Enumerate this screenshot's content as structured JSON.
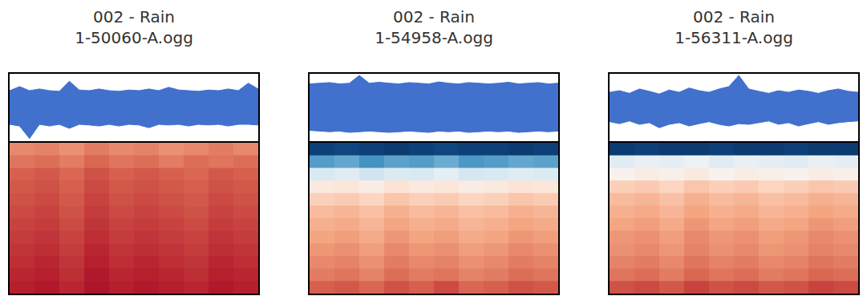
{
  "chart_data": [
    {
      "title": "002 - Rain",
      "subtitle": "1-50060-A.ogg",
      "waveform": {
        "type": "area",
        "color": "#4170cd",
        "xlim": [
          0,
          5
        ],
        "ylim": [
          -1,
          1
        ],
        "tick_labels": false,
        "grid": false,
        "x": [
          0,
          0.2,
          0.4,
          0.6,
          0.8,
          1,
          1.2,
          1.4,
          1.6,
          1.8,
          2,
          2.2,
          2.4,
          2.6,
          2.8,
          3,
          3.2,
          3.4,
          3.6,
          3.8,
          4,
          4.2,
          4.4,
          4.6,
          4.8,
          5
        ],
        "upper": [
          0.5,
          0.62,
          0.5,
          0.55,
          0.5,
          0.48,
          0.78,
          0.52,
          0.5,
          0.55,
          0.5,
          0.48,
          0.52,
          0.5,
          0.55,
          0.5,
          0.6,
          0.52,
          0.5,
          0.48,
          0.52,
          0.5,
          0.55,
          0.5,
          0.72,
          0.55
        ],
        "lower": [
          -0.5,
          -0.55,
          -0.92,
          -0.5,
          -0.55,
          -0.5,
          -0.62,
          -0.5,
          -0.52,
          -0.55,
          -0.5,
          -0.55,
          -0.5,
          -0.52,
          -0.6,
          -0.5,
          -0.52,
          -0.5,
          -0.55,
          -0.5,
          -0.52,
          -0.5,
          -0.55,
          -0.5,
          -0.5,
          -0.52
        ]
      },
      "spectrogram": {
        "type": "heatmap",
        "color_range": [
          0,
          1
        ],
        "tick_labels": false,
        "grid": false,
        "cells": [
          [
            0.74,
            0.75,
            0.73,
            0.76,
            0.74,
            0.75,
            0.73,
            0.74,
            0.76,
            0.74
          ],
          [
            0.77,
            0.78,
            0.76,
            0.79,
            0.77,
            0.78,
            0.76,
            0.78,
            0.77,
            0.78
          ],
          [
            0.8,
            0.81,
            0.79,
            0.82,
            0.8,
            0.81,
            0.8,
            0.79,
            0.81,
            0.8
          ],
          [
            0.81,
            0.82,
            0.8,
            0.83,
            0.81,
            0.82,
            0.81,
            0.8,
            0.82,
            0.81
          ],
          [
            0.82,
            0.83,
            0.81,
            0.84,
            0.82,
            0.83,
            0.82,
            0.81,
            0.83,
            0.82
          ],
          [
            0.83,
            0.84,
            0.82,
            0.85,
            0.83,
            0.84,
            0.83,
            0.82,
            0.84,
            0.83
          ],
          [
            0.84,
            0.85,
            0.83,
            0.86,
            0.84,
            0.85,
            0.84,
            0.83,
            0.85,
            0.84
          ],
          [
            0.85,
            0.86,
            0.84,
            0.87,
            0.85,
            0.86,
            0.85,
            0.84,
            0.86,
            0.85
          ],
          [
            0.86,
            0.87,
            0.85,
            0.88,
            0.86,
            0.87,
            0.86,
            0.85,
            0.87,
            0.86
          ],
          [
            0.87,
            0.88,
            0.86,
            0.89,
            0.87,
            0.88,
            0.87,
            0.86,
            0.88,
            0.87
          ],
          [
            0.88,
            0.89,
            0.87,
            0.9,
            0.88,
            0.89,
            0.88,
            0.87,
            0.89,
            0.88
          ],
          [
            0.89,
            0.9,
            0.88,
            0.91,
            0.89,
            0.9,
            0.89,
            0.88,
            0.9,
            0.89
          ]
        ]
      }
    },
    {
      "title": "002 - Rain",
      "subtitle": "1-54958-A.ogg",
      "waveform": {
        "type": "area",
        "color": "#4170cd",
        "xlim": [
          0,
          5
        ],
        "ylim": [
          -1,
          1
        ],
        "tick_labels": false,
        "grid": false,
        "x": [
          0,
          0.2,
          0.4,
          0.6,
          0.8,
          1,
          1.2,
          1.4,
          1.6,
          1.8,
          2,
          2.2,
          2.4,
          2.6,
          2.8,
          3,
          3.2,
          3.4,
          3.6,
          3.8,
          4,
          4.2,
          4.4,
          4.6,
          4.8,
          5
        ],
        "upper": [
          0.7,
          0.72,
          0.74,
          0.7,
          0.72,
          0.95,
          0.72,
          0.75,
          0.72,
          0.7,
          0.74,
          0.72,
          0.7,
          0.76,
          0.72,
          0.7,
          0.74,
          0.72,
          0.7,
          0.72,
          0.75,
          0.7,
          0.72,
          0.74,
          0.7,
          0.72
        ],
        "lower": [
          -0.68,
          -0.7,
          -0.72,
          -0.7,
          -0.74,
          -0.72,
          -0.7,
          -0.72,
          -0.74,
          -0.72,
          -0.7,
          -0.72,
          -0.74,
          -0.7,
          -0.72,
          -0.7,
          -0.74,
          -0.72,
          -0.7,
          -0.72,
          -0.7,
          -0.74,
          -0.72,
          -0.7,
          -0.72,
          -0.7
        ]
      },
      "spectrogram": {
        "type": "heatmap",
        "color_range": [
          0,
          1
        ],
        "tick_labels": false,
        "grid": false,
        "cells": [
          [
            0.03,
            0.04,
            0.03,
            0.02,
            0.03,
            0.04,
            0.03,
            0.03,
            0.02,
            0.03
          ],
          [
            0.22,
            0.24,
            0.2,
            0.23,
            0.22,
            0.25,
            0.21,
            0.22,
            0.24,
            0.23
          ],
          [
            0.42,
            0.44,
            0.4,
            0.43,
            0.42,
            0.45,
            0.41,
            0.42,
            0.44,
            0.43
          ],
          [
            0.55,
            0.56,
            0.54,
            0.57,
            0.55,
            0.56,
            0.54,
            0.55,
            0.57,
            0.56
          ],
          [
            0.62,
            0.63,
            0.61,
            0.64,
            0.62,
            0.63,
            0.61,
            0.62,
            0.64,
            0.63
          ],
          [
            0.66,
            0.67,
            0.65,
            0.68,
            0.66,
            0.67,
            0.65,
            0.66,
            0.68,
            0.67
          ],
          [
            0.68,
            0.69,
            0.67,
            0.7,
            0.68,
            0.69,
            0.67,
            0.68,
            0.7,
            0.69
          ],
          [
            0.7,
            0.71,
            0.69,
            0.72,
            0.7,
            0.71,
            0.69,
            0.7,
            0.72,
            0.71
          ],
          [
            0.72,
            0.73,
            0.71,
            0.74,
            0.72,
            0.73,
            0.71,
            0.72,
            0.74,
            0.73
          ],
          [
            0.74,
            0.75,
            0.73,
            0.76,
            0.74,
            0.75,
            0.73,
            0.74,
            0.76,
            0.75
          ],
          [
            0.76,
            0.77,
            0.75,
            0.78,
            0.76,
            0.77,
            0.75,
            0.76,
            0.78,
            0.77
          ],
          [
            0.8,
            0.81,
            0.79,
            0.82,
            0.8,
            0.83,
            0.79,
            0.8,
            0.82,
            0.81
          ]
        ]
      }
    },
    {
      "title": "002 - Rain",
      "subtitle": "1-56311-A.ogg",
      "waveform": {
        "type": "area",
        "color": "#4170cd",
        "xlim": [
          0,
          5
        ],
        "ylim": [
          -1,
          1
        ],
        "tick_labels": false,
        "grid": false,
        "x": [
          0,
          0.2,
          0.4,
          0.6,
          0.8,
          1,
          1.2,
          1.4,
          1.6,
          1.8,
          2,
          2.2,
          2.4,
          2.6,
          2.8,
          3,
          3.2,
          3.4,
          3.6,
          3.8,
          4,
          4.2,
          4.4,
          4.6,
          4.8,
          5
        ],
        "upper": [
          0.45,
          0.5,
          0.42,
          0.55,
          0.48,
          0.4,
          0.52,
          0.45,
          0.58,
          0.5,
          0.45,
          0.55,
          0.62,
          0.95,
          0.55,
          0.48,
          0.42,
          0.5,
          0.45,
          0.52,
          0.48,
          0.42,
          0.5,
          0.55,
          0.48,
          0.45
        ],
        "lower": [
          -0.42,
          -0.48,
          -0.4,
          -0.5,
          -0.45,
          -0.6,
          -0.5,
          -0.45,
          -0.55,
          -0.48,
          -0.42,
          -0.5,
          -0.55,
          -0.48,
          -0.5,
          -0.45,
          -0.4,
          -0.5,
          -0.45,
          -0.55,
          -0.48,
          -0.42,
          -0.5,
          -0.45,
          -0.42,
          -0.4
        ]
      },
      "spectrogram": {
        "type": "heatmap",
        "color_range": [
          0,
          1
        ],
        "tick_labels": false,
        "grid": false,
        "cells": [
          [
            0.02,
            0.03,
            0.02,
            0.02,
            0.03,
            0.02,
            0.02,
            0.03,
            0.02,
            0.02
          ],
          [
            0.44,
            0.46,
            0.45,
            0.47,
            0.44,
            0.46,
            0.45,
            0.44,
            0.46,
            0.45
          ],
          [
            0.52,
            0.54,
            0.53,
            0.55,
            0.52,
            0.54,
            0.53,
            0.52,
            0.54,
            0.53
          ],
          [
            0.62,
            0.63,
            0.61,
            0.64,
            0.62,
            0.63,
            0.61,
            0.62,
            0.64,
            0.63
          ],
          [
            0.66,
            0.67,
            0.65,
            0.68,
            0.66,
            0.67,
            0.65,
            0.66,
            0.68,
            0.67
          ],
          [
            0.68,
            0.69,
            0.67,
            0.7,
            0.68,
            0.69,
            0.67,
            0.68,
            0.7,
            0.69
          ],
          [
            0.7,
            0.71,
            0.69,
            0.72,
            0.7,
            0.71,
            0.69,
            0.7,
            0.72,
            0.71
          ],
          [
            0.72,
            0.73,
            0.71,
            0.74,
            0.72,
            0.73,
            0.71,
            0.72,
            0.74,
            0.73
          ],
          [
            0.73,
            0.74,
            0.72,
            0.75,
            0.73,
            0.74,
            0.72,
            0.73,
            0.75,
            0.74
          ],
          [
            0.75,
            0.76,
            0.74,
            0.77,
            0.75,
            0.76,
            0.74,
            0.75,
            0.77,
            0.76
          ],
          [
            0.77,
            0.78,
            0.76,
            0.79,
            0.77,
            0.78,
            0.76,
            0.77,
            0.79,
            0.78
          ],
          [
            0.82,
            0.83,
            0.81,
            0.84,
            0.82,
            0.83,
            0.81,
            0.82,
            0.84,
            0.83
          ]
        ]
      }
    }
  ]
}
